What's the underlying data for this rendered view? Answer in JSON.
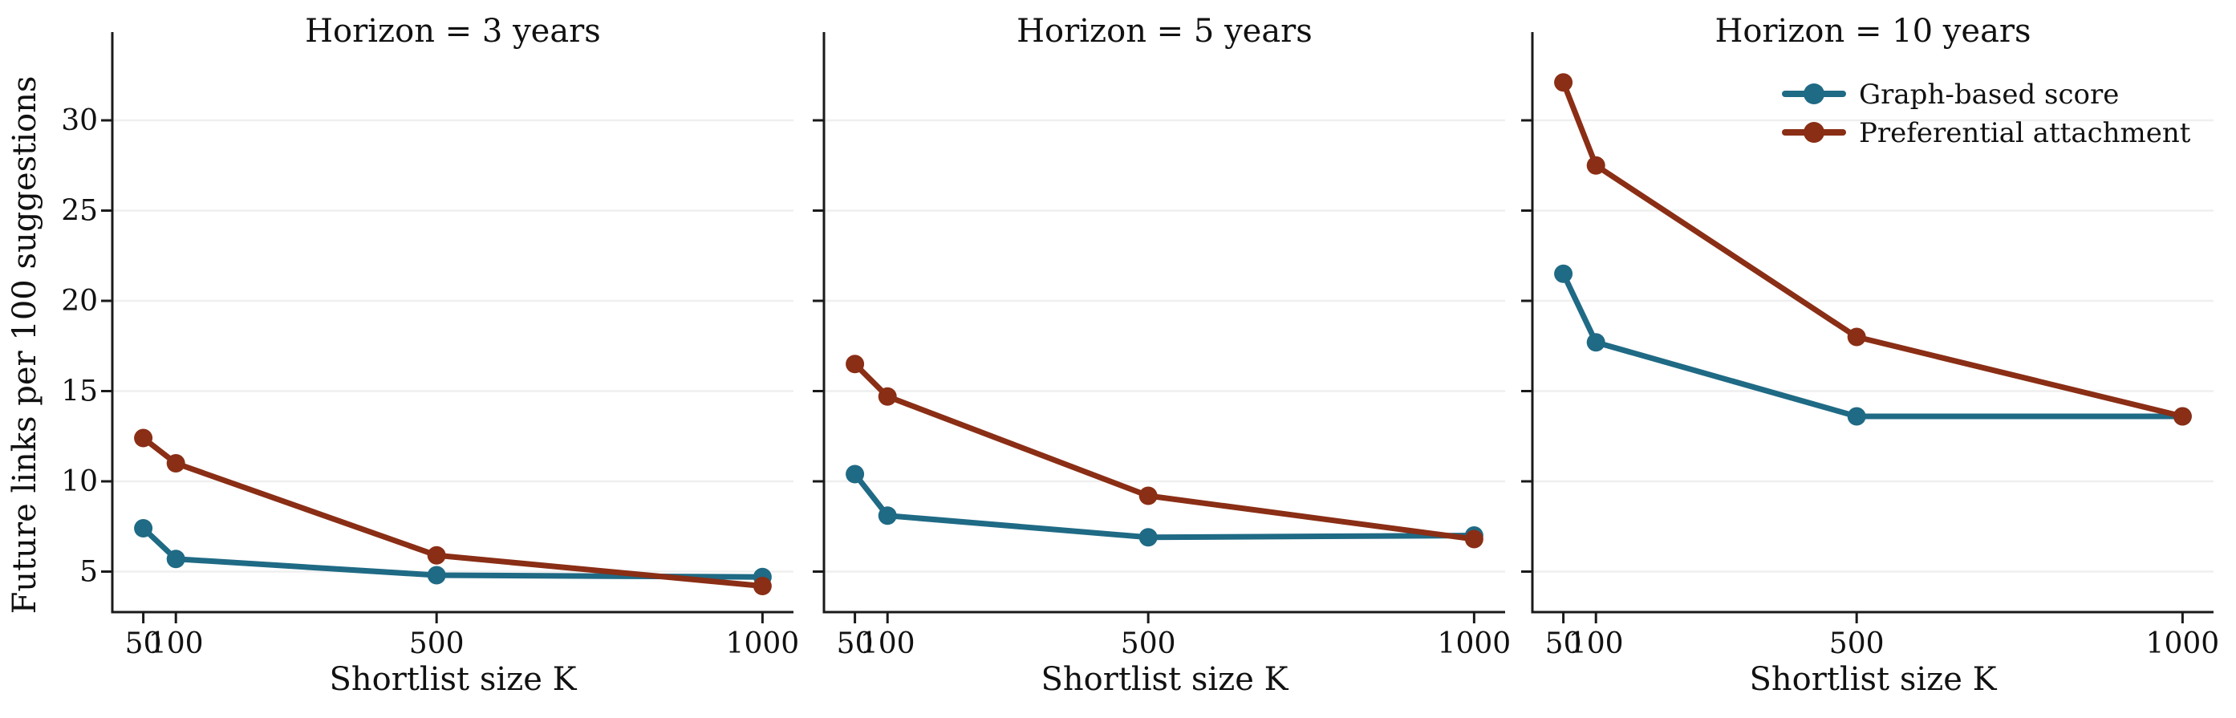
{
  "figure": {
    "kind": "faceted line chart",
    "background": "#ffffff"
  },
  "chart_data": {
    "type": "line",
    "x": [
      50,
      100,
      500,
      1000
    ],
    "xlabel": "Shortlist size K",
    "ylabel": "Future links per 100 suggestions",
    "x_ticks": [
      50,
      100,
      500,
      1000
    ],
    "y_ticks": [
      5,
      10,
      15,
      20,
      25,
      30
    ],
    "xlim": [
      2.5,
      1047.5
    ],
    "ylim": [
      2.8,
      34.9
    ],
    "grid": "horizontal-only",
    "facets": [
      {
        "title": "Horizon = 3 years",
        "series": [
          {
            "name": "Graph-based score",
            "values": [
              7.4,
              5.7,
              4.8,
              4.7
            ]
          },
          {
            "name": "Preferential attachment",
            "values": [
              12.4,
              11.0,
              5.9,
              4.2
            ]
          }
        ]
      },
      {
        "title": "Horizon = 5 years",
        "series": [
          {
            "name": "Graph-based score",
            "values": [
              10.4,
              8.1,
              6.9,
              7.0
            ]
          },
          {
            "name": "Preferential attachment",
            "values": [
              16.5,
              14.7,
              9.2,
              6.8
            ]
          }
        ]
      },
      {
        "title": "Horizon = 10 years",
        "series": [
          {
            "name": "Graph-based score",
            "values": [
              21.5,
              17.7,
              13.6,
              13.6
            ]
          },
          {
            "name": "Preferential attachment",
            "values": [
              32.1,
              27.5,
              18.0,
              13.6
            ]
          }
        ]
      }
    ],
    "legend": {
      "position": "upper right of last panel",
      "entries": [
        "Graph-based score",
        "Preferential attachment"
      ]
    },
    "colors": {
      "Graph-based score": "#1f6a85",
      "Preferential attachment": "#8a2e15",
      "gridline": "#efefef",
      "spine": "#1a1a1a",
      "text": "#111111"
    }
  }
}
